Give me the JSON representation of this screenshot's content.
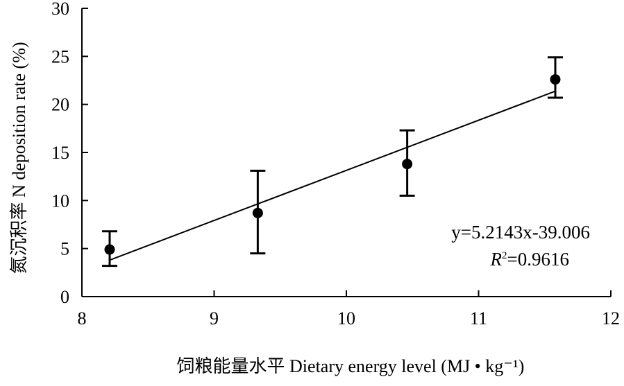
{
  "chart_data": {
    "type": "scatter",
    "title": "",
    "xlabel": "饲粮能量水平 Dietary energy level (MJ • kg⁻¹)",
    "ylabel": "氮沉积率 N deposition rate (%)",
    "xlim": [
      8,
      12
    ],
    "ylim": [
      0,
      30
    ],
    "xticks": [
      "8",
      "9",
      "10",
      "11",
      "12"
    ],
    "yticks": [
      "0",
      "5",
      "10",
      "15",
      "20",
      "25",
      "30"
    ],
    "grid": false,
    "points": [
      {
        "x": 8.21,
        "y": 4.9,
        "err_low": 3.2,
        "err_high": 6.8
      },
      {
        "x": 9.33,
        "y": 8.7,
        "err_low": 4.5,
        "err_high": 13.1
      },
      {
        "x": 10.46,
        "y": 13.8,
        "err_low": 10.5,
        "err_high": 17.3
      },
      {
        "x": 11.58,
        "y": 22.6,
        "err_low": 20.7,
        "err_high": 24.9
      }
    ],
    "trendline": {
      "slope": 5.2143,
      "intercept": -39.006,
      "x_range": [
        8.21,
        11.58
      ]
    },
    "annotations": {
      "equation": "y=5.2143x-39.006",
      "r2": "R²=0.9616"
    }
  }
}
